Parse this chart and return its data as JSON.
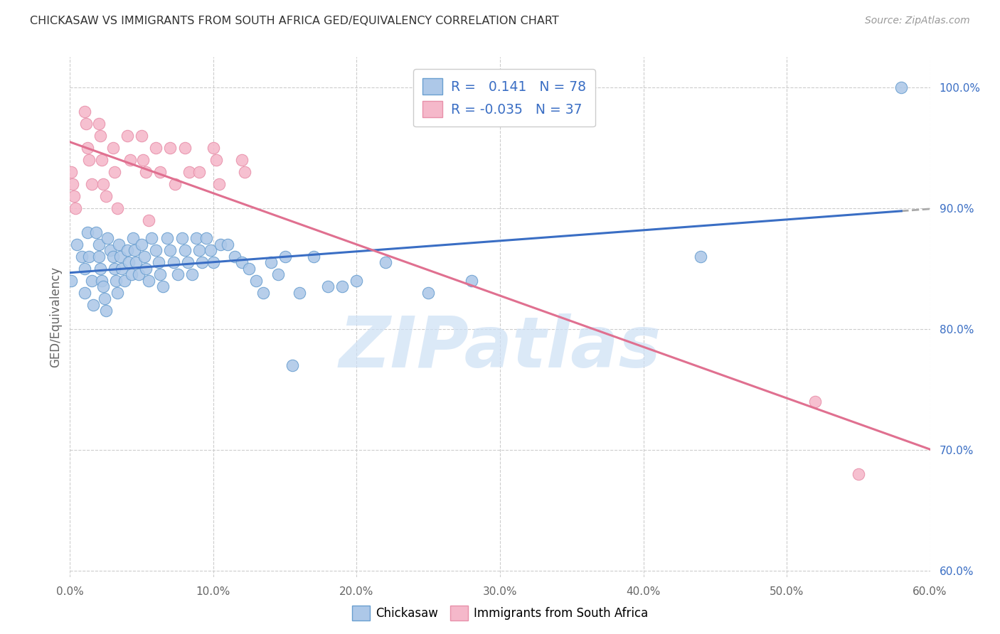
{
  "title": "CHICKASAW VS IMMIGRANTS FROM SOUTH AFRICA GED/EQUIVALENCY CORRELATION CHART",
  "source": "Source: ZipAtlas.com",
  "ylabel": "GED/Equivalency",
  "xlim": [
    0.0,
    0.6
  ],
  "ylim": [
    0.595,
    1.025
  ],
  "xtick_vals": [
    0.0,
    0.1,
    0.2,
    0.3,
    0.4,
    0.5,
    0.6
  ],
  "ytick_vals_right": [
    0.6,
    0.7,
    0.8,
    0.9,
    1.0
  ],
  "ytick_labels_right": [
    "60.0%",
    "70.0%",
    "80.0%",
    "90.0%",
    "100.0%"
  ],
  "blue_R": "0.141",
  "blue_N": "78",
  "pink_R": "-0.035",
  "pink_N": "37",
  "blue_fill_color": "#adc8e8",
  "pink_fill_color": "#f5b8ca",
  "blue_edge_color": "#6a9fd0",
  "pink_edge_color": "#e890aa",
  "blue_line_color": "#3a6ec4",
  "pink_line_color": "#e07090",
  "dash_color": "#aaaaaa",
  "rn_value_color": "#3a6ec4",
  "watermark_color": "#cde0f5",
  "watermark_text": "ZIPatlas",
  "blue_label": "Chickasaw",
  "pink_label": "Immigrants from South Africa",
  "blue_scatter_x": [
    0.001,
    0.005,
    0.008,
    0.01,
    0.01,
    0.012,
    0.013,
    0.015,
    0.016,
    0.018,
    0.02,
    0.02,
    0.021,
    0.022,
    0.023,
    0.024,
    0.025,
    0.026,
    0.028,
    0.03,
    0.031,
    0.032,
    0.033,
    0.034,
    0.035,
    0.036,
    0.038,
    0.04,
    0.041,
    0.043,
    0.044,
    0.045,
    0.046,
    0.048,
    0.05,
    0.052,
    0.053,
    0.055,
    0.057,
    0.06,
    0.062,
    0.063,
    0.065,
    0.068,
    0.07,
    0.072,
    0.075,
    0.078,
    0.08,
    0.082,
    0.085,
    0.088,
    0.09,
    0.092,
    0.095,
    0.098,
    0.1,
    0.105,
    0.11,
    0.115,
    0.12,
    0.125,
    0.13,
    0.135,
    0.14,
    0.145,
    0.15,
    0.155,
    0.16,
    0.17,
    0.18,
    0.19,
    0.2,
    0.22,
    0.25,
    0.28,
    0.44,
    0.58
  ],
  "blue_scatter_y": [
    0.84,
    0.87,
    0.86,
    0.85,
    0.83,
    0.88,
    0.86,
    0.84,
    0.82,
    0.88,
    0.87,
    0.86,
    0.85,
    0.84,
    0.835,
    0.825,
    0.815,
    0.875,
    0.865,
    0.86,
    0.85,
    0.84,
    0.83,
    0.87,
    0.86,
    0.85,
    0.84,
    0.865,
    0.855,
    0.845,
    0.875,
    0.865,
    0.855,
    0.845,
    0.87,
    0.86,
    0.85,
    0.84,
    0.875,
    0.865,
    0.855,
    0.845,
    0.835,
    0.875,
    0.865,
    0.855,
    0.845,
    0.875,
    0.865,
    0.855,
    0.845,
    0.875,
    0.865,
    0.855,
    0.875,
    0.865,
    0.855,
    0.87,
    0.87,
    0.86,
    0.855,
    0.85,
    0.84,
    0.83,
    0.855,
    0.845,
    0.86,
    0.77,
    0.83,
    0.86,
    0.835,
    0.835,
    0.84,
    0.855,
    0.83,
    0.84,
    0.86,
    1.0
  ],
  "pink_scatter_x": [
    0.001,
    0.002,
    0.003,
    0.004,
    0.01,
    0.011,
    0.012,
    0.013,
    0.015,
    0.02,
    0.021,
    0.022,
    0.023,
    0.025,
    0.03,
    0.031,
    0.033,
    0.04,
    0.042,
    0.05,
    0.051,
    0.053,
    0.055,
    0.06,
    0.063,
    0.07,
    0.073,
    0.08,
    0.083,
    0.09,
    0.1,
    0.102,
    0.104,
    0.12,
    0.122,
    0.52,
    0.55
  ],
  "pink_scatter_y": [
    0.93,
    0.92,
    0.91,
    0.9,
    0.98,
    0.97,
    0.95,
    0.94,
    0.92,
    0.97,
    0.96,
    0.94,
    0.92,
    0.91,
    0.95,
    0.93,
    0.9,
    0.96,
    0.94,
    0.96,
    0.94,
    0.93,
    0.89,
    0.95,
    0.93,
    0.95,
    0.92,
    0.95,
    0.93,
    0.93,
    0.95,
    0.94,
    0.92,
    0.94,
    0.93,
    0.74,
    0.68
  ],
  "blue_line_x_start": 0.001,
  "blue_line_x_solid_end": 0.58,
  "blue_line_x_dash_end": 0.6,
  "pink_line_x_start": 0.0,
  "pink_line_x_end": 0.6
}
